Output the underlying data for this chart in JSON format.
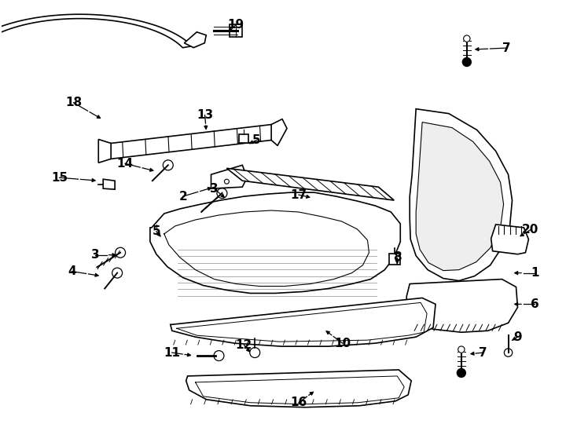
{
  "bg_color": "#ffffff",
  "line_color": "#000000",
  "line_width": 1.2,
  "fig_width": 7.34,
  "fig_height": 5.4
}
